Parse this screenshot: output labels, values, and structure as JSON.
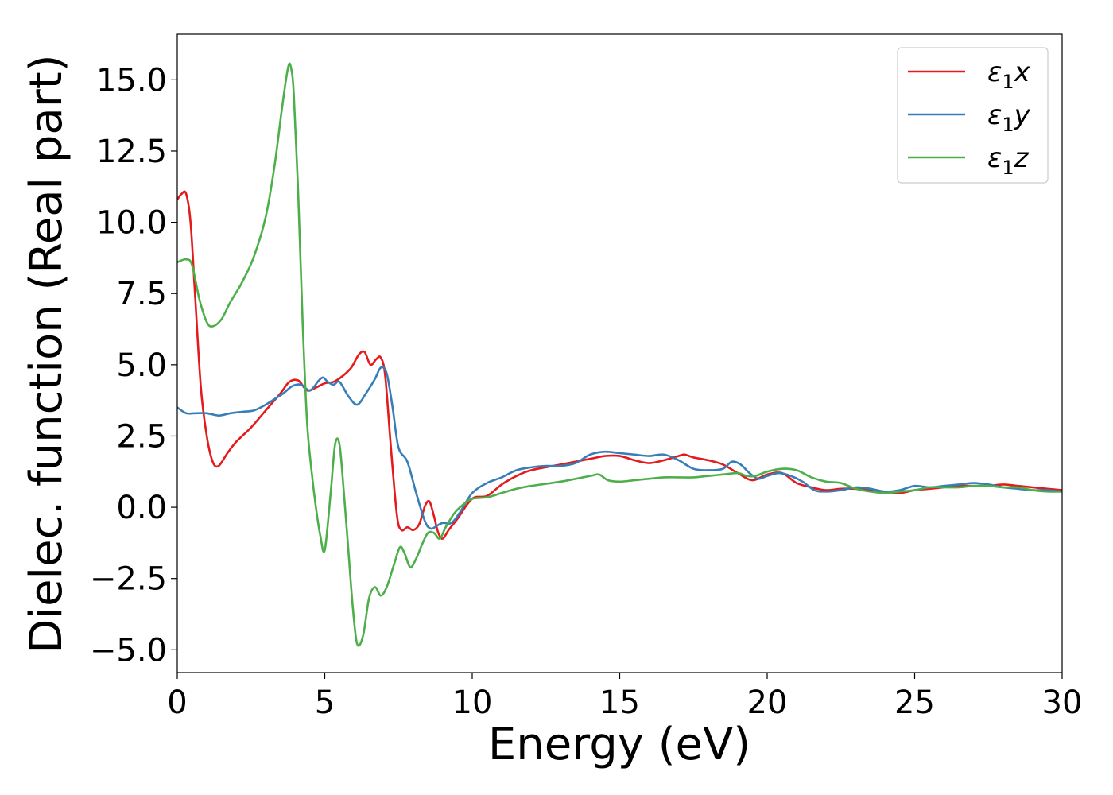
{
  "chart_data": {
    "type": "line",
    "title": "",
    "xlabel": "Energy (eV)",
    "ylabel": "Dielec. function (Real part)",
    "xlim": [
      0,
      30
    ],
    "ylim": [
      -5.8,
      16.6
    ],
    "xticks": [
      0,
      5,
      10,
      15,
      20,
      25,
      30
    ],
    "xtick_labels": [
      "0",
      "5",
      "10",
      "15",
      "20",
      "25",
      "30"
    ],
    "yticks": [
      -5.0,
      -2.5,
      0.0,
      2.5,
      5.0,
      7.5,
      10.0,
      12.5,
      15.0
    ],
    "ytick_labels": [
      "−5.0",
      "−2.5",
      "0.0",
      "2.5",
      "5.0",
      "7.5",
      "10.0",
      "12.5",
      "15.0"
    ],
    "grid": false,
    "legend_position": "top-right",
    "series": [
      {
        "name": "ε₁x",
        "legend_base": "ε",
        "legend_sub": "1",
        "legend_var": "x",
        "color": "#e41a1c",
        "x": [
          0,
          0.15,
          0.3,
          0.45,
          0.6,
          0.8,
          1.0,
          1.2,
          1.4,
          1.7,
          2.0,
          2.5,
          3.0,
          3.5,
          3.8,
          4.1,
          4.4,
          4.7,
          5.0,
          5.3,
          5.6,
          5.9,
          6.15,
          6.35,
          6.55,
          6.75,
          6.9,
          7.05,
          7.25,
          7.45,
          7.6,
          7.8,
          8.0,
          8.2,
          8.4,
          8.55,
          8.7,
          8.85,
          9.0,
          9.2,
          9.5,
          10.0,
          10.5,
          11.0,
          11.5,
          12.0,
          13.0,
          14.0,
          14.5,
          15.0,
          15.5,
          16.0,
          16.5,
          17.0,
          17.2,
          17.5,
          18.0,
          18.5,
          19.0,
          19.5,
          20.0,
          20.5,
          21.0,
          21.5,
          22.0,
          22.5,
          23.0,
          23.5,
          24.0,
          24.5,
          25.0,
          25.5,
          26.0,
          26.5,
          27.0,
          27.5,
          28.0,
          28.5,
          29.0,
          29.5,
          30.0
        ],
        "y": [
          10.8,
          11.0,
          11.0,
          10.0,
          7.5,
          4.2,
          2.5,
          1.6,
          1.45,
          1.9,
          2.3,
          2.8,
          3.4,
          4.0,
          4.4,
          4.45,
          4.1,
          4.2,
          4.35,
          4.4,
          4.6,
          4.9,
          5.35,
          5.45,
          5.0,
          5.2,
          5.25,
          4.6,
          2.0,
          -0.3,
          -0.8,
          -0.7,
          -0.8,
          -0.6,
          0.05,
          0.2,
          -0.3,
          -0.9,
          -1.1,
          -0.8,
          -0.4,
          0.3,
          0.4,
          0.8,
          1.1,
          1.3,
          1.5,
          1.7,
          1.8,
          1.8,
          1.65,
          1.55,
          1.65,
          1.8,
          1.85,
          1.75,
          1.65,
          1.5,
          1.2,
          0.95,
          1.15,
          1.2,
          0.85,
          0.7,
          0.6,
          0.65,
          0.65,
          0.6,
          0.55,
          0.5,
          0.6,
          0.65,
          0.7,
          0.75,
          0.75,
          0.75,
          0.8,
          0.75,
          0.7,
          0.65,
          0.6
        ]
      },
      {
        "name": "ε₁y",
        "legend_base": "ε",
        "legend_sub": "1",
        "legend_var": "y",
        "color": "#377eb8",
        "x": [
          0,
          0.3,
          0.6,
          1.0,
          1.4,
          1.8,
          2.2,
          2.6,
          3.0,
          3.3,
          3.6,
          3.9,
          4.2,
          4.5,
          4.8,
          4.95,
          5.1,
          5.3,
          5.5,
          5.8,
          6.1,
          6.4,
          6.7,
          6.9,
          7.1,
          7.3,
          7.5,
          7.8,
          8.1,
          8.4,
          8.6,
          8.8,
          9.0,
          9.3,
          9.6,
          10.0,
          10.5,
          11.0,
          11.5,
          12.0,
          12.5,
          13.0,
          13.5,
          14.0,
          14.5,
          15.0,
          15.5,
          16.0,
          16.5,
          17.0,
          17.5,
          18.0,
          18.5,
          18.8,
          19.1,
          19.4,
          19.7,
          20.0,
          20.4,
          20.8,
          21.2,
          21.6,
          22.0,
          22.5,
          23.0,
          23.5,
          24.0,
          24.5,
          25.0,
          25.5,
          26.0,
          26.5,
          27.0,
          27.5,
          28.0,
          28.5,
          29.0,
          29.5,
          30.0
        ],
        "y": [
          3.5,
          3.3,
          3.3,
          3.3,
          3.22,
          3.3,
          3.35,
          3.4,
          3.6,
          3.8,
          4.0,
          4.25,
          4.3,
          4.1,
          4.45,
          4.55,
          4.4,
          4.3,
          4.4,
          3.9,
          3.6,
          4.0,
          4.5,
          4.9,
          4.7,
          3.5,
          2.1,
          1.6,
          0.5,
          -0.5,
          -0.75,
          -0.65,
          -0.55,
          -0.55,
          -0.15,
          0.5,
          0.85,
          1.05,
          1.3,
          1.4,
          1.45,
          1.45,
          1.55,
          1.85,
          1.95,
          1.9,
          1.85,
          1.8,
          1.85,
          1.65,
          1.35,
          1.3,
          1.35,
          1.6,
          1.5,
          1.2,
          1.0,
          1.1,
          1.2,
          1.1,
          0.9,
          0.6,
          0.55,
          0.6,
          0.7,
          0.65,
          0.55,
          0.6,
          0.75,
          0.7,
          0.75,
          0.8,
          0.85,
          0.8,
          0.7,
          0.65,
          0.6,
          0.6,
          0.55
        ]
      },
      {
        "name": "ε₁z",
        "legend_base": "ε",
        "legend_sub": "1",
        "legend_var": "z",
        "color": "#4daf4a",
        "x": [
          0,
          0.3,
          0.5,
          0.75,
          1.0,
          1.2,
          1.5,
          1.8,
          2.2,
          2.6,
          3.0,
          3.3,
          3.55,
          3.75,
          3.85,
          3.95,
          4.1,
          4.25,
          4.4,
          4.55,
          4.7,
          4.85,
          5.0,
          5.2,
          5.35,
          5.5,
          5.65,
          5.8,
          5.95,
          6.1,
          6.3,
          6.5,
          6.7,
          6.9,
          7.1,
          7.35,
          7.55,
          7.7,
          7.9,
          8.1,
          8.3,
          8.5,
          8.7,
          8.9,
          9.1,
          9.4,
          9.7,
          10.0,
          10.5,
          11.0,
          11.5,
          12.0,
          13.0,
          14.0,
          14.3,
          14.6,
          15.0,
          15.5,
          16.0,
          16.5,
          17.0,
          17.5,
          18.0,
          18.5,
          19.0,
          19.3,
          19.6,
          20.0,
          20.5,
          21.0,
          21.5,
          22.0,
          22.5,
          23.0,
          23.5,
          24.0,
          24.5,
          25.0,
          25.5,
          26.0,
          26.5,
          27.0,
          27.5,
          28.0,
          28.5,
          29.0,
          29.5,
          30.0
        ],
        "y": [
          8.6,
          8.7,
          8.5,
          7.3,
          6.5,
          6.35,
          6.6,
          7.2,
          7.9,
          8.8,
          10.2,
          12.0,
          14.0,
          15.4,
          15.45,
          14.5,
          11.0,
          6.5,
          3.0,
          1.3,
          0.0,
          -1.0,
          -1.5,
          0.5,
          2.2,
          2.2,
          0.5,
          -1.5,
          -3.5,
          -4.8,
          -4.5,
          -3.2,
          -2.8,
          -3.1,
          -2.8,
          -2.0,
          -1.4,
          -1.6,
          -2.1,
          -1.8,
          -1.3,
          -0.9,
          -0.9,
          -1.1,
          -0.7,
          -0.2,
          0.1,
          0.3,
          0.35,
          0.5,
          0.65,
          0.75,
          0.9,
          1.1,
          1.15,
          0.95,
          0.9,
          0.95,
          1.0,
          1.05,
          1.05,
          1.05,
          1.1,
          1.15,
          1.2,
          1.1,
          1.1,
          1.25,
          1.35,
          1.3,
          1.05,
          0.9,
          0.85,
          0.65,
          0.55,
          0.5,
          0.55,
          0.6,
          0.7,
          0.7,
          0.7,
          0.75,
          0.75,
          0.7,
          0.7,
          0.6,
          0.55,
          0.55
        ]
      }
    ]
  }
}
